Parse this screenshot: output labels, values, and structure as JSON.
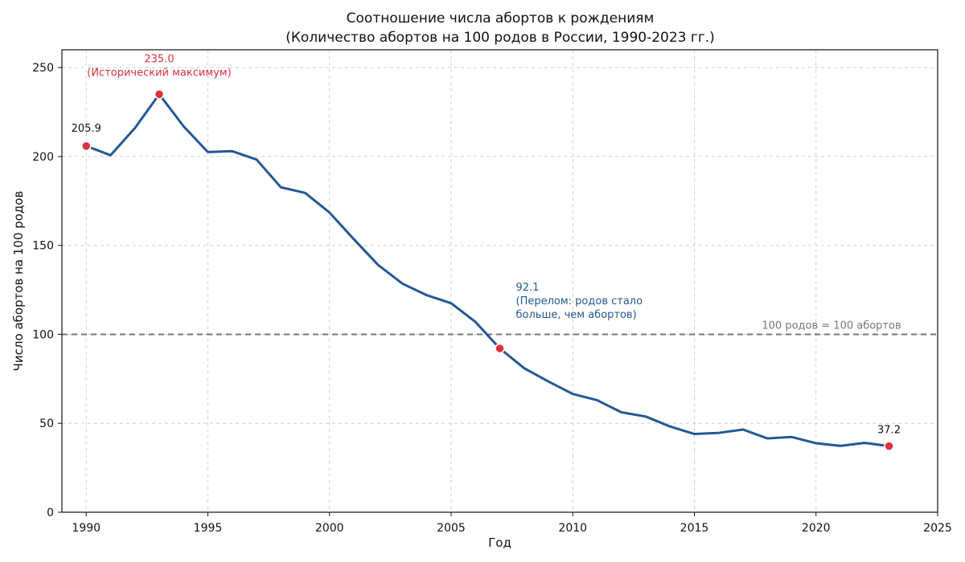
{
  "chart_data": {
    "type": "line",
    "title": "Соотношение числа абортов к рождениям",
    "subtitle": "(Количество абортов на 100 родов в России, 1990-2023 гг.)",
    "xlabel": "Год",
    "ylabel": "Число абортов на 100 родов",
    "xlim": [
      1989,
      2025
    ],
    "ylim": [
      0,
      260
    ],
    "xticks": [
      1990,
      1995,
      2000,
      2005,
      2010,
      2015,
      2020,
      2025
    ],
    "yticks": [
      0,
      50,
      100,
      150,
      200,
      250
    ],
    "grid": true,
    "series": [
      {
        "x": [
          1990,
          1991,
          1992,
          1993,
          1994,
          1995,
          1996,
          1997,
          1998,
          1999,
          2000,
          2001,
          2002,
          2003,
          2004,
          2005,
          2006,
          2007,
          2008,
          2009,
          2010,
          2011,
          2012,
          2013,
          2014,
          2015,
          2016,
          2017,
          2018,
          2019,
          2020,
          2021,
          2022,
          2023
        ],
        "values": [
          205.9,
          200.7,
          216.0,
          235.0,
          217.0,
          202.5,
          203.0,
          198.3,
          182.7,
          179.5,
          168.5,
          153.5,
          139.0,
          128.5,
          122.0,
          117.5,
          107.0,
          92.1,
          81.0,
          73.5,
          66.5,
          63.0,
          56.2,
          53.8,
          48.2,
          44.0,
          44.6,
          46.5,
          41.5,
          42.3,
          38.8,
          37.3,
          39.0,
          37.2
        ],
        "color": "#245892"
      }
    ],
    "reference_line": {
      "y": 100,
      "label": "100 родов = 100 абортов",
      "color": "#777777"
    },
    "highlight_color": "#E0303D",
    "annotations": [
      {
        "x": 1990,
        "y": 205.9,
        "lines": [
          "205.9"
        ],
        "color": "#111111"
      },
      {
        "x": 1993,
        "y": 235.0,
        "lines": [
          "235.0",
          "(Исторический максимум)"
        ],
        "color": "#E0303D"
      },
      {
        "x": 2007,
        "y": 92.1,
        "lines": [
          "92.1",
          "(Перелом: родов стало",
          "больше, чем абортов)"
        ],
        "color": "#245892"
      },
      {
        "x": 2023,
        "y": 37.2,
        "lines": [
          "37.2"
        ],
        "color": "#111111"
      }
    ]
  }
}
